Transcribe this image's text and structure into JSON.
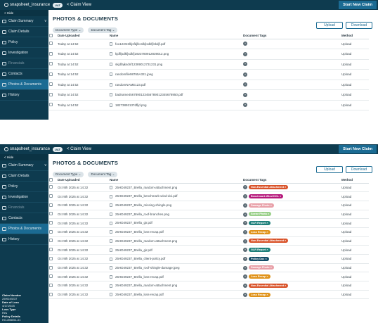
{
  "app": {
    "brand": "snapsheet_insurance",
    "env": "UAT",
    "breadcrumb": "< Claim View",
    "new_claim": "Start New Claim"
  },
  "sidebar": {
    "hide": "< Hide",
    "items": [
      {
        "label": "Claim Summary",
        "chev": "v"
      },
      {
        "label": "Claim Details"
      },
      {
        "label": "Policy"
      },
      {
        "label": "Investigation"
      },
      {
        "label": "Financials"
      },
      {
        "label": "Contacts"
      },
      {
        "label": "Photos & Documents"
      },
      {
        "label": "History"
      }
    ],
    "info": {
      "claim_number_label": "Claim Number",
      "claim_number": "25HD49237",
      "date_of_loss_label": "Date of Loss",
      "date_of_loss": "4/17/2025",
      "loss_type_label": "Loss Type",
      "loss_type": "Res",
      "policy_details_label": "Policy Details",
      "policy_details": "HO-898051-01"
    }
  },
  "page": {
    "title": "PHOTOS & DOCUMENTS",
    "filter_type": "Document Type ⌄",
    "filter_tag": "Document Tag ⌄",
    "upload": "Upload",
    "download": "Download"
  },
  "columns": {
    "date": "Date Uploaded",
    "name": "Name",
    "tags": "Document Tags",
    "method": "Method"
  },
  "colors": {
    "nav": "#0e3b4f",
    "accent": "#1b6b93"
  },
  "table1": [
    {
      "date": "Today at 14:52",
      "name": "foo123!23lkjsfdjlkcslkjlsdkfjlskdjf.pdf",
      "method": "Upload"
    },
    {
      "date": "Today at 14:52",
      "name": "kjdfljsdkfjsdkfj1923780912839012.png",
      "method": "Upload"
    },
    {
      "date": "Today at 14:52",
      "name": "skjdfajksdnf12389012731231.png",
      "method": "Upload"
    },
    {
      "date": "Today at 14:52",
      "name": "randomfile98765A321.jpeg",
      "method": "Upload"
    },
    {
      "date": "Today at 14:52",
      "name": "randomNAME123.pdf",
      "method": "Upload"
    },
    {
      "date": "Today at 14:52",
      "name": "badname4567890123456789012345678950.pdf",
      "method": "Upload"
    },
    {
      "date": "Today at 14:52",
      "name": "18273892137dfljd.png",
      "method": "Upload"
    }
  ],
  "table2": [
    {
      "date": "Oct 9th 2025 at 14:32",
      "name": "25HD49237_Brella_random-attachment.png",
      "tag": "Non-Essential Attachment",
      "color": "#d9532a",
      "method": "Upload"
    },
    {
      "date": "Oct 9th 2025 at 14:32",
      "name": "25HD49237_Brella_benchmark-wind-doi.pdf",
      "tag": "Benchmark Wind DOL",
      "color": "#b5177a",
      "method": "Upload"
    },
    {
      "date": "Oct 9th 2025 at 14:32",
      "name": "25HD49237_Brella_missing-shingle.png",
      "tag": "Damage Photo",
      "color": "#e8a0a8",
      "method": "Upload"
    },
    {
      "date": "Oct 9th 2025 at 14:32",
      "name": "25HD49237_Brella_roof-branches.png",
      "tag": "Scene Photo",
      "color": "#9ad08a",
      "method": "Upload"
    },
    {
      "date": "Oct 9th 2025 at 14:32",
      "name": "25HD49237_Brella_gir.pdf",
      "tag": "GLR Report",
      "color": "#1c7f7a",
      "method": "Upload"
    },
    {
      "date": "Oct 9th 2025 at 14:32",
      "name": "25HD49237_Brella_loss-recap.pdf",
      "tag": "Loss Recap",
      "color": "#e0931a",
      "method": "Upload"
    },
    {
      "date": "Oct 9th 2025 at 14:32",
      "name": "25HD49237_Brella_random-attachment.png",
      "tag": "Non-Essential Attachment",
      "color": "#d9532a",
      "method": "Upload"
    },
    {
      "date": "Oct 9th 2025 at 14:32",
      "name": "25HD49237_Brella_gir.pdf",
      "tag": "GLR Report",
      "color": "#1c7f7a",
      "method": "Upload"
    },
    {
      "date": "Oct 9th 2025 at 14:32",
      "name": "25HD49237_Brella_client-policy.pdf",
      "tag": "Policy Doc",
      "color": "#124b66",
      "method": "Upload"
    },
    {
      "date": "Oct 9th 2025 at 14:32",
      "name": "25HD49237_Brella_roof-shingle-damage.jpeg",
      "tag": "Damage Photo",
      "color": "#e8a0a8",
      "method": "Upload"
    },
    {
      "date": "Oct 9th 2025 at 14:32",
      "name": "25HD49237_Brella_loss-recap.pdf",
      "tag": "Loss Recap",
      "color": "#e0931a",
      "method": "Upload"
    },
    {
      "date": "Oct 9th 2025 at 14:32",
      "name": "25HD49237_Brella_random-attachment.png",
      "tag": "Non-Essential Attachment",
      "color": "#d9532a",
      "method": "Upload"
    },
    {
      "date": "Oct 9th 2025 at 14:32",
      "name": "25HD49237_Brella_loss-recap.pdf",
      "tag": "Loss Recap",
      "color": "#e0931a",
      "method": "Upload"
    }
  ]
}
